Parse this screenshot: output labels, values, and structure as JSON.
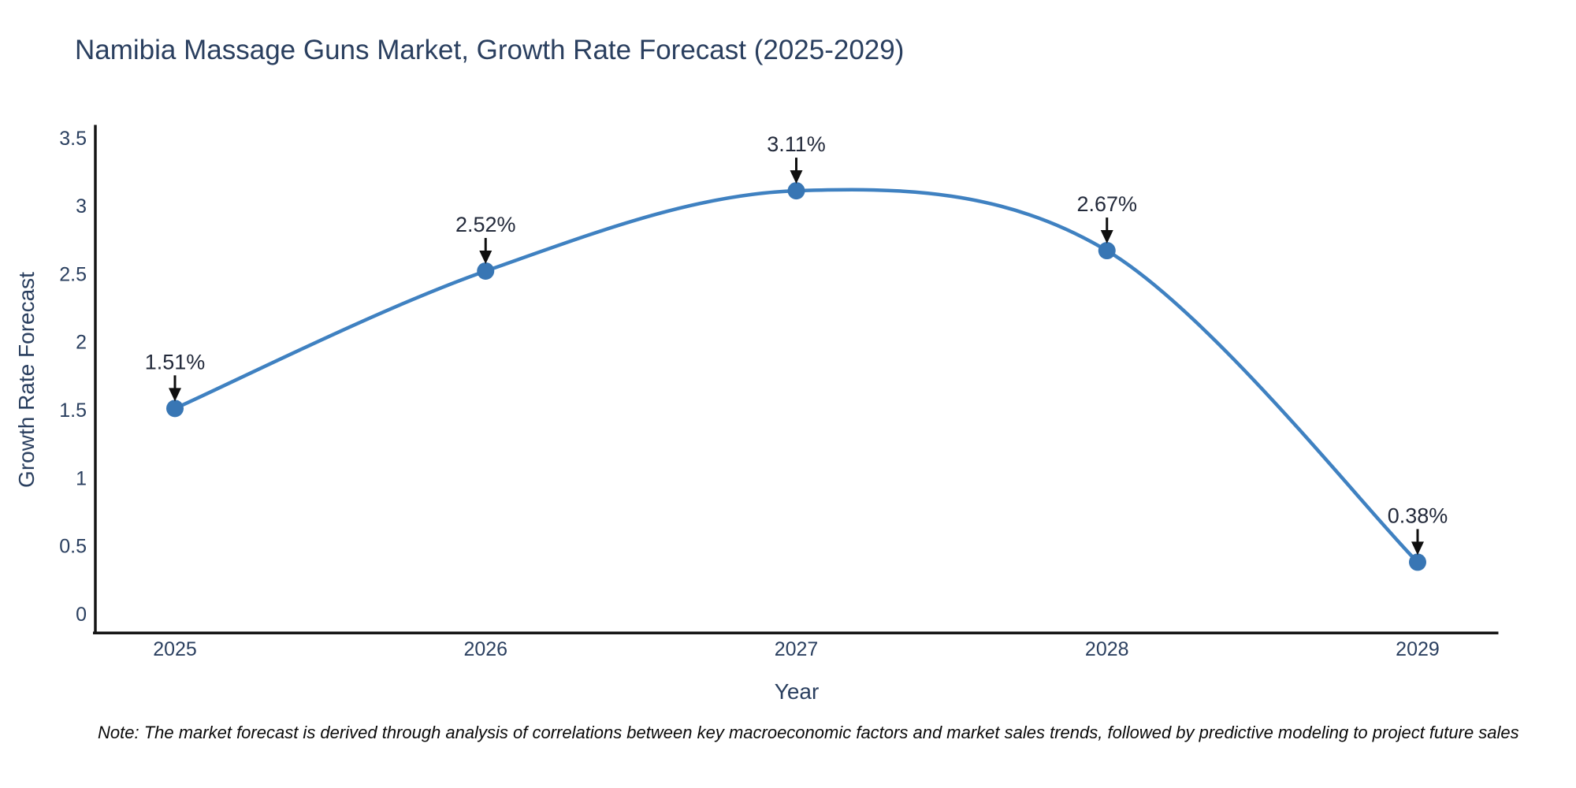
{
  "header": {
    "title": "Namibia Massage Guns Market, Growth Rate Forecast (2025-2029)"
  },
  "footnote": {
    "text": "Note: The market forecast is derived through analysis of correlations between key macroeconomic factors and market sales trends, followed by predictive modeling to project future sales"
  },
  "chart_data": {
    "type": "line",
    "title": "Namibia Massage Guns Market, Growth Rate Forecast (2025-2029)",
    "xlabel": "Year",
    "ylabel": "Growth Rate Forecast",
    "x": [
      2025,
      2026,
      2027,
      2028,
      2029
    ],
    "y": [
      1.51,
      2.52,
      3.11,
      2.67,
      0.38
    ],
    "point_labels": [
      "1.51%",
      "2.52%",
      "3.11%",
      "2.67%",
      "0.38%"
    ],
    "xtick_labels": [
      "2025",
      "2026",
      "2027",
      "2028",
      "2029"
    ],
    "yticks": [
      0,
      0.5,
      1,
      1.5,
      2,
      2.5,
      3,
      3.5
    ],
    "ytick_labels": [
      "0",
      "0.5",
      "1",
      "1.5",
      "2",
      "2.5",
      "3",
      "3.5"
    ],
    "xlim": [
      2024.74,
      2029.26
    ],
    "ylim": [
      -0.14,
      3.6
    ],
    "line_shape": "spline",
    "grid": false,
    "legend": "none",
    "colors": {
      "line": "#3f81c1",
      "marker": "#3876b4",
      "axis_line": "#161616",
      "text": "#2a3f5f",
      "annotation_text": "#22293a",
      "annotation_arrow": "#0f0f0f"
    }
  }
}
